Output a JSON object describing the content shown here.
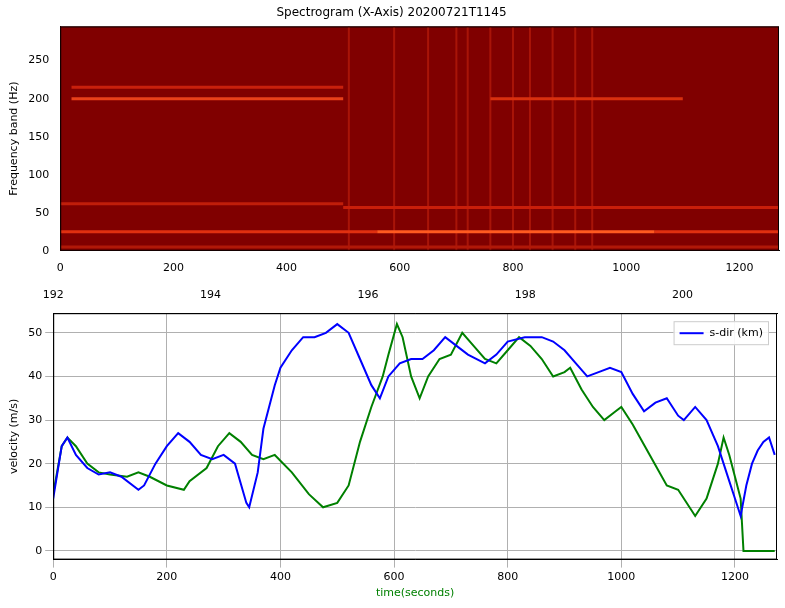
{
  "chart_data": [
    {
      "type": "heatmap",
      "title": "Spectrogram (X-Axis) 20200721T1145",
      "y_label": "Frequency band (Hz)",
      "xlim": [
        0,
        1270
      ],
      "xticks": [
        0,
        200,
        400,
        600,
        800,
        1000,
        1200
      ],
      "ylim": [
        0,
        295
      ],
      "yticks": [
        0,
        50,
        100,
        150,
        200,
        250
      ],
      "grid": false,
      "background": "#800000",
      "bands": [
        {
          "freq": 200,
          "x": [
            20,
            500
          ],
          "color": "#e8401a"
        },
        {
          "freq": 215,
          "x": [
            20,
            500
          ],
          "color": "#c8200c"
        },
        {
          "freq": 200,
          "x": [
            760,
            1100
          ],
          "color": "#d8300f"
        },
        {
          "freq": 62,
          "x": [
            0,
            500
          ],
          "color": "#c01e0a"
        },
        {
          "freq": 57,
          "x": [
            500,
            1270
          ],
          "color": "#c81e0a"
        },
        {
          "freq": 25,
          "x": [
            0,
            560
          ],
          "color": "#e03010"
        },
        {
          "freq": 25,
          "x": [
            560,
            1050
          ],
          "color": "#ff5a20"
        },
        {
          "freq": 25,
          "x": [
            1050,
            1270
          ],
          "color": "#e03010"
        },
        {
          "freq": 5,
          "x": [
            0,
            1270
          ],
          "color": "#b01808"
        }
      ],
      "streaks": {
        "x": [
          510,
          590,
          650,
          700,
          720,
          760,
          800,
          830,
          870,
          910,
          940
        ],
        "color": "#a81408"
      }
    },
    {
      "type": "line",
      "x_label": "time(seconds)",
      "y_label": "velocity (m/s)",
      "xlim": [
        0,
        1274
      ],
      "xticks": [
        0,
        200,
        400,
        600,
        800,
        1000,
        1200
      ],
      "x2lim": [
        192,
        201.2
      ],
      "x2ticks": [
        192,
        194,
        196,
        198,
        200
      ],
      "ylim": [
        -2,
        54.5
      ],
      "yticks": [
        0,
        10,
        20,
        30,
        40,
        50
      ],
      "grid": true,
      "legend": "upper right",
      "series": [
        {
          "name": "s-dir (km)",
          "color": "#0000ff",
          "x": [
            0,
            15,
            25,
            40,
            60,
            80,
            100,
            120,
            150,
            160,
            180,
            200,
            220,
            240,
            260,
            280,
            300,
            320,
            340,
            345,
            360,
            370,
            390,
            400,
            420,
            440,
            460,
            480,
            500,
            520,
            540,
            560,
            575,
            590,
            610,
            630,
            650,
            670,
            690,
            710,
            730,
            760,
            780,
            800,
            830,
            860,
            880,
            900,
            920,
            940,
            960,
            980,
            1000,
            1020,
            1040,
            1060,
            1080,
            1100,
            1110,
            1130,
            1150,
            1170,
            1190,
            1200,
            1210,
            1220,
            1230,
            1240,
            1250,
            1260,
            1270
          ],
          "values": [
            12,
            24,
            26,
            22,
            19,
            17.5,
            18,
            17,
            14,
            15,
            20,
            24,
            27,
            25,
            22,
            21,
            22,
            20,
            11,
            10,
            18,
            28,
            38,
            42,
            46,
            49,
            49,
            50,
            52,
            50,
            44,
            38,
            35,
            40,
            43,
            44,
            44,
            46,
            49,
            47,
            45,
            43,
            45,
            48,
            49,
            49,
            48,
            46,
            43,
            40,
            41,
            42,
            41,
            36,
            32,
            34,
            35,
            31,
            30,
            33,
            30,
            24,
            16,
            12,
            8,
            15,
            20,
            23,
            25,
            26,
            22
          ]
        },
        {
          "name": null,
          "color": "#008000",
          "x": [
            0,
            15,
            25,
            40,
            60,
            80,
            100,
            130,
            150,
            170,
            200,
            230,
            240,
            270,
            290,
            310,
            330,
            350,
            370,
            390,
            420,
            450,
            475,
            500,
            520,
            540,
            560,
            580,
            590,
            605,
            615,
            630,
            645,
            660,
            680,
            700,
            720,
            740,
            760,
            780,
            800,
            820,
            840,
            860,
            880,
            900,
            910,
            930,
            950,
            970,
            990,
            1000,
            1020,
            1050,
            1080,
            1100,
            1130,
            1150,
            1170,
            1180,
            1190,
            1200,
            1210,
            1215,
            1270
          ],
          "values": [
            13,
            24,
            26,
            24,
            20,
            18,
            17.5,
            17,
            18,
            17,
            15,
            14,
            16,
            19,
            24,
            27,
            25,
            22,
            21,
            22,
            18,
            13,
            10,
            11,
            15,
            25,
            33,
            40,
            45,
            52,
            49,
            40,
            35,
            40,
            44,
            45,
            50,
            47,
            44,
            43,
            46,
            49,
            47,
            44,
            40,
            41,
            42,
            37,
            33,
            30,
            32,
            33,
            29,
            22,
            15,
            14,
            8,
            12,
            20,
            26,
            22,
            17,
            12,
            0,
            0
          ]
        }
      ]
    }
  ]
}
